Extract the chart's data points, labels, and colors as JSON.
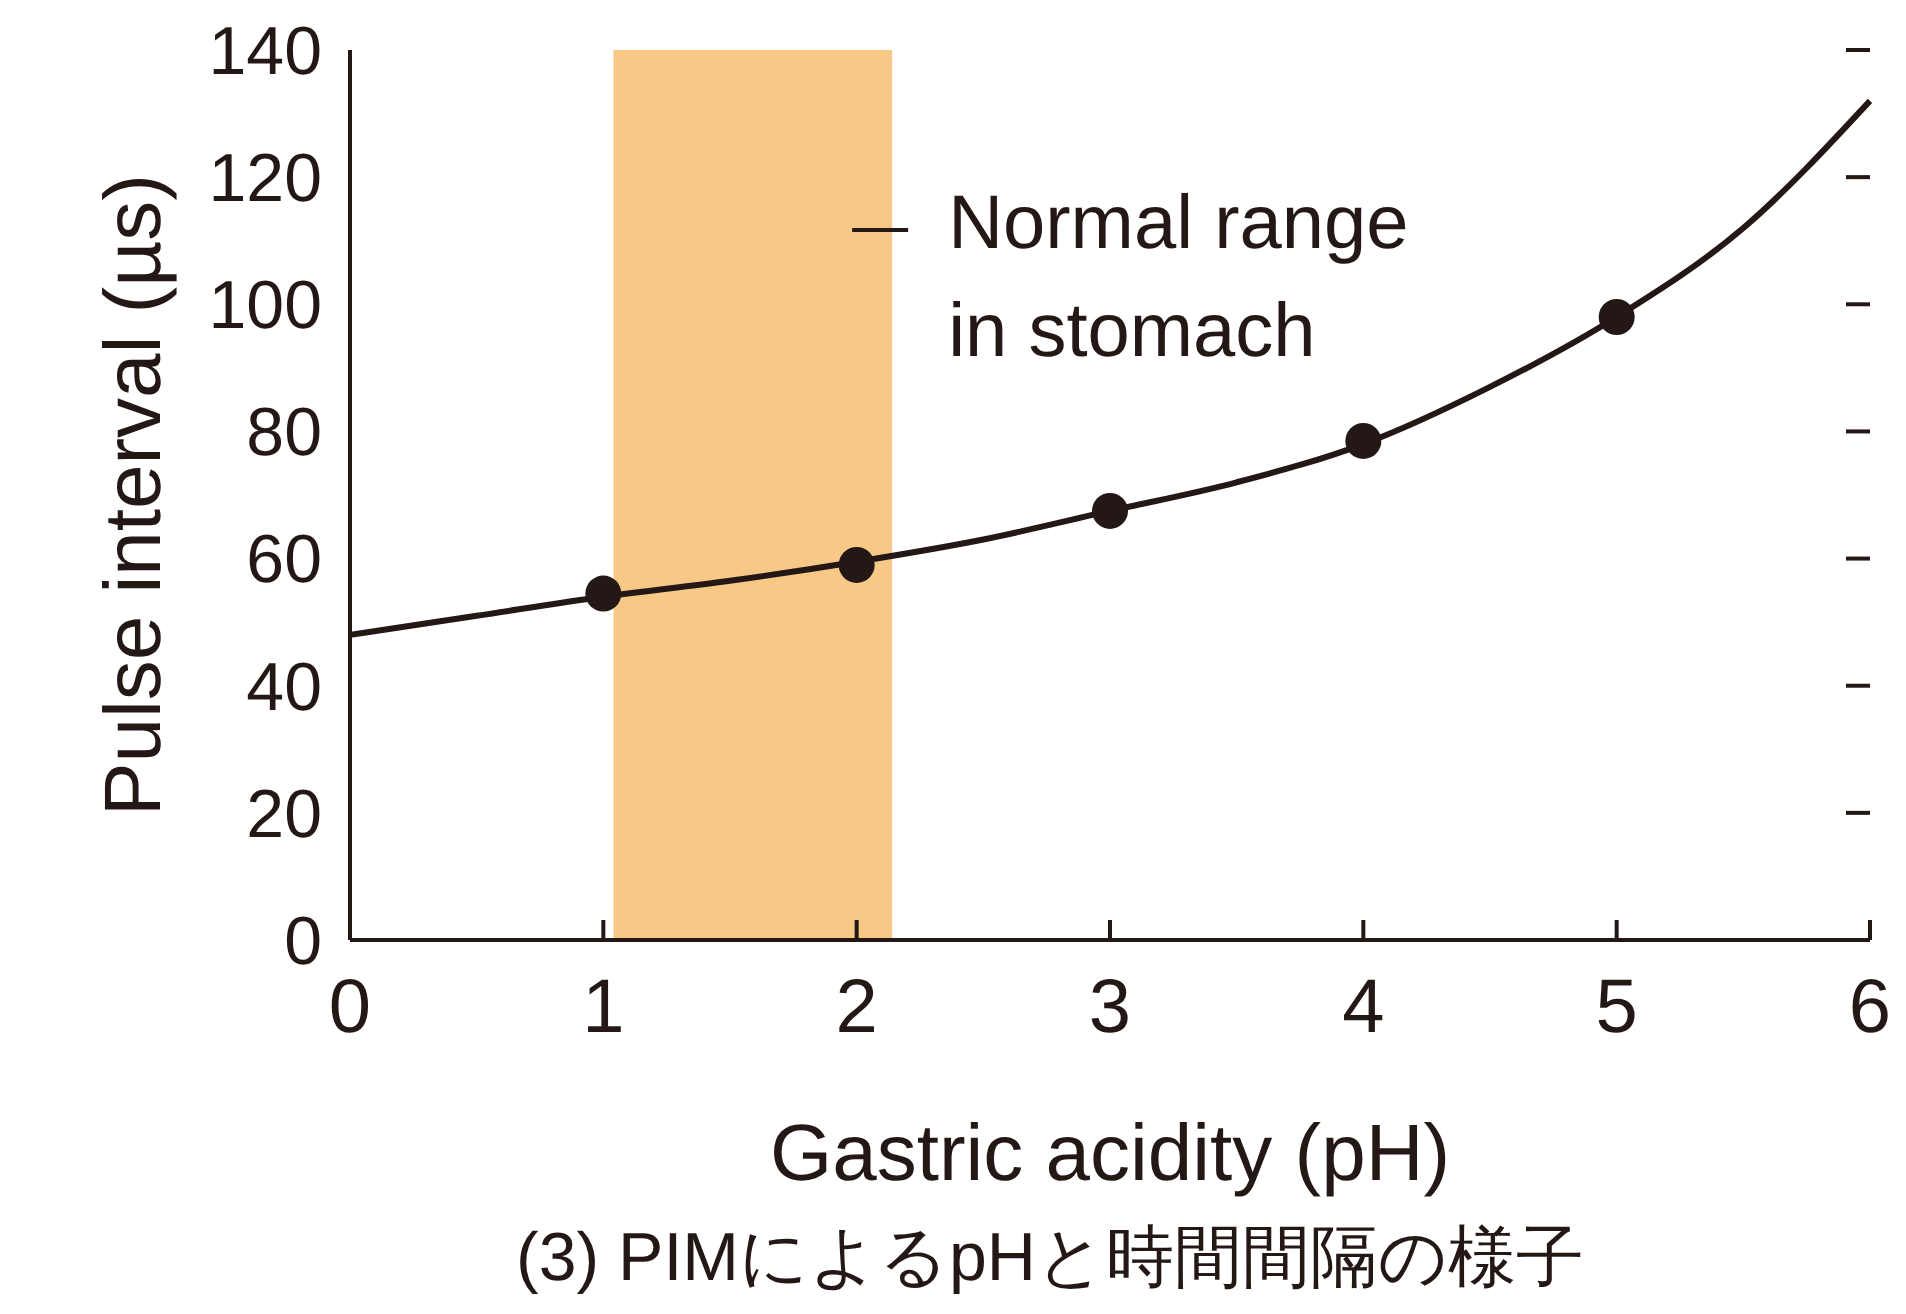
{
  "chart_data": {
    "type": "line",
    "xlabel": "Gastric acidity (pH)",
    "ylabel": "Pulse interval (µs)",
    "annotations": [
      "(3) PIMによるpHと時間間隔の様子"
    ],
    "xlim": [
      0,
      6
    ],
    "xticks": [
      0,
      1,
      2,
      3,
      4,
      5,
      6
    ],
    "ylim": [
      0,
      140
    ],
    "yticks": [
      0,
      20,
      40,
      60,
      80,
      100,
      120,
      140
    ],
    "grid": false,
    "bands": [
      {
        "axis": "x",
        "from": 1.04,
        "to": 2.14,
        "label": "Normal range\nin stomach",
        "color": "#f8c986"
      }
    ],
    "series": [
      {
        "color": "#231815",
        "marker": "none",
        "line_style": "solid",
        "x": [
          0,
          0.5,
          1,
          1.5,
          2,
          2.5,
          3,
          3.5,
          4,
          4.5,
          5,
          5.5,
          6
        ],
        "values": [
          48,
          51,
          54,
          56.5,
          59.5,
          63,
          67.5,
          72,
          78,
          87,
          98,
          112,
          132
        ]
      },
      {
        "type": "scatter",
        "color": "#231815",
        "marker": "circle",
        "x": [
          1,
          2,
          3,
          4,
          5
        ],
        "values": [
          54.5,
          59,
          67.5,
          78.5,
          98
        ]
      }
    ]
  }
}
